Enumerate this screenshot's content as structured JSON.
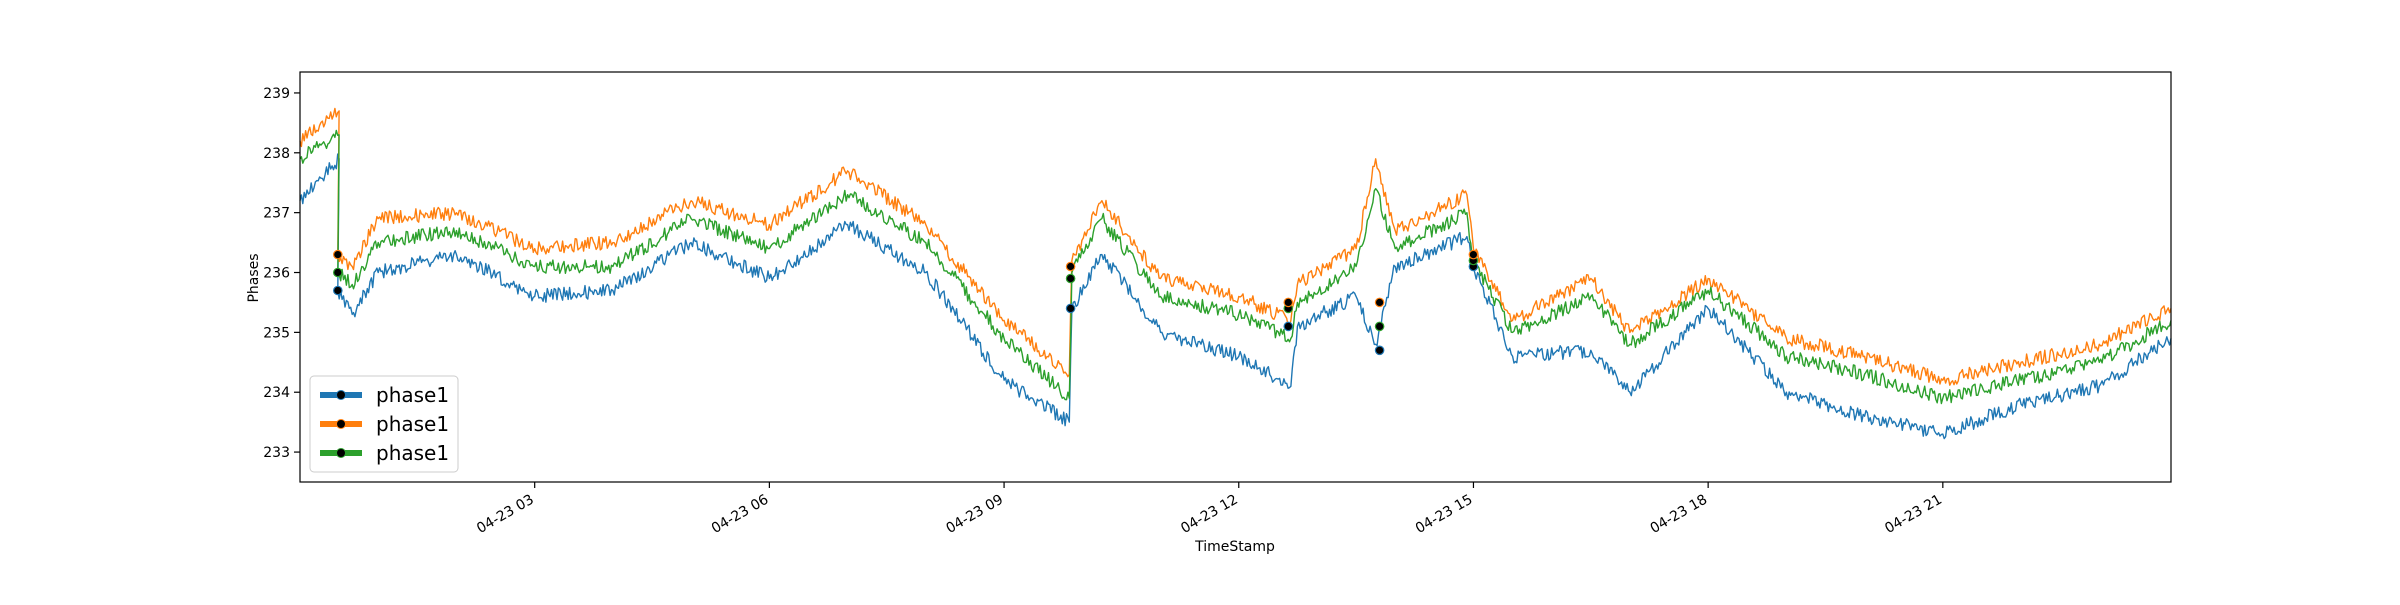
{
  "chart_data": {
    "type": "line",
    "title": "",
    "xlabel": "TimeStamp",
    "ylabel": "Phases",
    "ylim": [
      232.5,
      239.35
    ],
    "xlim": [
      "2024-04-23 00:00",
      "2024-04-23 23:55"
    ],
    "x_ticks": [
      {
        "x": "2024-04-23 03:00",
        "label": "04-23 03"
      },
      {
        "x": "2024-04-23 06:00",
        "label": "04-23 06"
      },
      {
        "x": "2024-04-23 09:00",
        "label": "04-23 09"
      },
      {
        "x": "2024-04-23 12:00",
        "label": "04-23 12"
      },
      {
        "x": "2024-04-23 15:00",
        "label": "04-23 15"
      },
      {
        "x": "2024-04-23 18:00",
        "label": "04-23 18"
      },
      {
        "x": "2024-04-23 21:00",
        "label": "04-23 21"
      }
    ],
    "y_ticks": [
      233,
      234,
      235,
      236,
      237,
      238,
      239
    ],
    "grid": false,
    "legend_position": "lower-left",
    "series": [
      {
        "name": "phase1",
        "color": "#1f77b4",
        "points": [
          [
            "2024-04-23 00:00",
            237.2
          ],
          [
            "2024-04-23 00:30",
            237.9
          ],
          [
            "2024-04-23 00:29",
            235.7
          ],
          [
            "2024-04-23 00:40",
            235.3
          ],
          [
            "2024-04-23 01:00",
            236.0
          ],
          [
            "2024-04-23 02:00",
            236.3
          ],
          [
            "2024-04-23 03:00",
            235.6
          ],
          [
            "2024-04-23 04:00",
            235.7
          ],
          [
            "2024-04-23 05:00",
            236.5
          ],
          [
            "2024-04-23 06:00",
            235.9
          ],
          [
            "2024-04-23 07:00",
            236.8
          ],
          [
            "2024-04-23 08:00",
            236.0
          ],
          [
            "2024-04-23 09:00",
            234.2
          ],
          [
            "2024-04-23 09:50",
            233.5
          ],
          [
            "2024-04-23 09:52",
            235.4
          ],
          [
            "2024-04-23 10:15",
            236.3
          ],
          [
            "2024-04-23 11:00",
            235.0
          ],
          [
            "2024-04-23 12:00",
            234.6
          ],
          [
            "2024-04-23 12:40",
            234.1
          ],
          [
            "2024-04-23 12:45",
            235.1
          ],
          [
            "2024-04-23 13:30",
            235.6
          ],
          [
            "2024-04-23 13:45",
            234.8
          ],
          [
            "2024-04-23 14:00",
            236.1
          ],
          [
            "2024-04-23 14:55",
            236.6
          ],
          [
            "2024-04-23 15:00",
            236.1
          ],
          [
            "2024-04-23 15:30",
            234.6
          ],
          [
            "2024-04-23 16:30",
            234.7
          ],
          [
            "2024-04-23 17:00",
            234.0
          ],
          [
            "2024-04-23 18:00",
            235.4
          ],
          [
            "2024-04-23 19:00",
            234.0
          ],
          [
            "2024-04-23 20:00",
            233.6
          ],
          [
            "2024-04-23 21:00",
            233.3
          ],
          [
            "2024-04-23 22:00",
            233.8
          ],
          [
            "2024-04-23 23:00",
            234.1
          ],
          [
            "2024-04-23 23:55",
            234.9
          ]
        ]
      },
      {
        "name": "phase1",
        "color": "#ff7f0e",
        "points": [
          [
            "2024-04-23 00:00",
            238.2
          ],
          [
            "2024-04-23 00:30",
            238.7
          ],
          [
            "2024-04-23 00:29",
            236.3
          ],
          [
            "2024-04-23 00:40",
            236.1
          ],
          [
            "2024-04-23 01:00",
            236.9
          ],
          [
            "2024-04-23 02:00",
            237.0
          ],
          [
            "2024-04-23 03:00",
            236.4
          ],
          [
            "2024-04-23 04:00",
            236.5
          ],
          [
            "2024-04-23 05:00",
            237.2
          ],
          [
            "2024-04-23 06:00",
            236.8
          ],
          [
            "2024-04-23 07:00",
            237.7
          ],
          [
            "2024-04-23 08:00",
            236.8
          ],
          [
            "2024-04-23 09:00",
            235.2
          ],
          [
            "2024-04-23 09:50",
            234.3
          ],
          [
            "2024-04-23 09:52",
            236.2
          ],
          [
            "2024-04-23 10:15",
            237.2
          ],
          [
            "2024-04-23 11:00",
            235.9
          ],
          [
            "2024-04-23 12:00",
            235.6
          ],
          [
            "2024-04-23 12:40",
            235.2
          ],
          [
            "2024-04-23 12:45",
            235.8
          ],
          [
            "2024-04-23 13:30",
            236.4
          ],
          [
            "2024-04-23 13:45",
            237.9
          ],
          [
            "2024-04-23 14:00",
            236.7
          ],
          [
            "2024-04-23 14:55",
            237.3
          ],
          [
            "2024-04-23 15:00",
            236.4
          ],
          [
            "2024-04-23 15:30",
            235.2
          ],
          [
            "2024-04-23 16:30",
            235.9
          ],
          [
            "2024-04-23 17:00",
            235.0
          ],
          [
            "2024-04-23 18:00",
            235.9
          ],
          [
            "2024-04-23 19:00",
            234.9
          ],
          [
            "2024-04-23 20:00",
            234.6
          ],
          [
            "2024-04-23 21:00",
            234.2
          ],
          [
            "2024-04-23 22:00",
            234.5
          ],
          [
            "2024-04-23 23:00",
            234.8
          ],
          [
            "2024-04-23 23:55",
            235.4
          ]
        ]
      },
      {
        "name": "phase1",
        "color": "#2ca02c",
        "points": [
          [
            "2024-04-23 00:00",
            237.9
          ],
          [
            "2024-04-23 00:30",
            238.3
          ],
          [
            "2024-04-23 00:29",
            236.0
          ],
          [
            "2024-04-23 00:40",
            235.8
          ],
          [
            "2024-04-23 01:00",
            236.5
          ],
          [
            "2024-04-23 02:00",
            236.7
          ],
          [
            "2024-04-23 03:00",
            236.1
          ],
          [
            "2024-04-23 04:00",
            236.1
          ],
          [
            "2024-04-23 05:00",
            236.9
          ],
          [
            "2024-04-23 06:00",
            236.4
          ],
          [
            "2024-04-23 07:00",
            237.3
          ],
          [
            "2024-04-23 08:00",
            236.5
          ],
          [
            "2024-04-23 09:00",
            234.9
          ],
          [
            "2024-04-23 09:50",
            233.9
          ],
          [
            "2024-04-23 09:52",
            236.0
          ],
          [
            "2024-04-23 10:15",
            236.9
          ],
          [
            "2024-04-23 11:00",
            235.6
          ],
          [
            "2024-04-23 12:00",
            235.3
          ],
          [
            "2024-04-23 12:40",
            234.9
          ],
          [
            "2024-04-23 12:45",
            235.5
          ],
          [
            "2024-04-23 13:30",
            236.1
          ],
          [
            "2024-04-23 13:45",
            237.4
          ],
          [
            "2024-04-23 14:00",
            236.4
          ],
          [
            "2024-04-23 14:55",
            237.0
          ],
          [
            "2024-04-23 15:00",
            236.2
          ],
          [
            "2024-04-23 15:30",
            235.0
          ],
          [
            "2024-04-23 16:30",
            235.6
          ],
          [
            "2024-04-23 17:00",
            234.8
          ],
          [
            "2024-04-23 18:00",
            235.7
          ],
          [
            "2024-04-23 19:00",
            234.6
          ],
          [
            "2024-04-23 20:00",
            234.3
          ],
          [
            "2024-04-23 21:00",
            233.9
          ],
          [
            "2024-04-23 22:00",
            234.2
          ],
          [
            "2024-04-23 23:00",
            234.5
          ],
          [
            "2024-04-23 23:55",
            235.2
          ]
        ]
      }
    ],
    "markers": [
      {
        "series": 0,
        "x": "2024-04-23 00:29",
        "y": 235.7
      },
      {
        "series": 2,
        "x": "2024-04-23 00:29",
        "y": 236.0
      },
      {
        "series": 1,
        "x": "2024-04-23 00:29",
        "y": 236.3
      },
      {
        "series": 0,
        "x": "2024-04-23 09:51",
        "y": 235.4
      },
      {
        "series": 2,
        "x": "2024-04-23 09:51",
        "y": 235.9
      },
      {
        "series": 1,
        "x": "2024-04-23 09:51",
        "y": 236.1
      },
      {
        "series": 0,
        "x": "2024-04-23 12:38",
        "y": 235.1
      },
      {
        "series": 2,
        "x": "2024-04-23 12:38",
        "y": 235.4
      },
      {
        "series": 1,
        "x": "2024-04-23 12:38",
        "y": 235.5
      },
      {
        "series": 0,
        "x": "2024-04-23 13:48",
        "y": 234.7
      },
      {
        "series": 2,
        "x": "2024-04-23 13:48",
        "y": 235.1
      },
      {
        "series": 1,
        "x": "2024-04-23 13:48",
        "y": 235.5
      },
      {
        "series": 0,
        "x": "2024-04-23 15:00",
        "y": 236.1
      },
      {
        "series": 2,
        "x": "2024-04-23 15:00",
        "y": 236.2
      },
      {
        "series": 1,
        "x": "2024-04-23 15:00",
        "y": 236.3
      }
    ]
  }
}
